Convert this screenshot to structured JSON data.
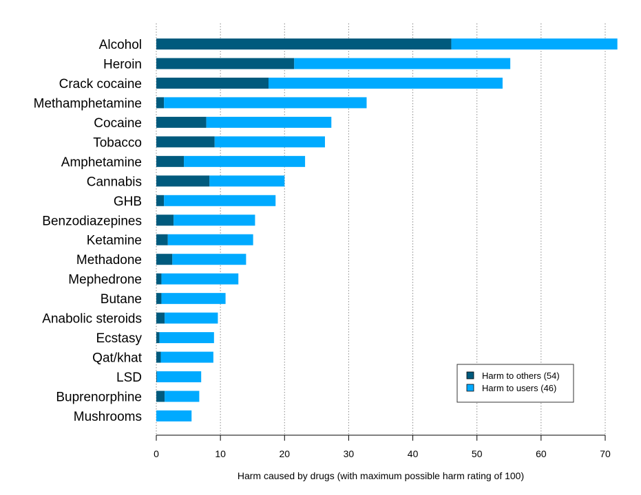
{
  "chart_data": {
    "type": "bar",
    "orientation": "horizontal",
    "stacked": true,
    "xlabel": "Harm caused by drugs (with maximum possible harm rating of 100)",
    "xlim": [
      0,
      70
    ],
    "xticks": [
      "0",
      "10",
      "20",
      "30",
      "40",
      "50",
      "60",
      "70"
    ],
    "grid": "vertical dotted",
    "legend_position": "bottom-right",
    "categories": [
      "Alcohol",
      "Heroin",
      "Crack cocaine",
      "Methamphetamine",
      "Cocaine",
      "Tobacco",
      "Amphetamine",
      "Cannabis",
      "GHB",
      "Benzodiazepines",
      "Ketamine",
      "Methadone",
      "Mephedrone",
      "Butane",
      "Anabolic steroids",
      "Ecstasy",
      "Qat/khat",
      "LSD",
      "Buprenorphine",
      "Mushrooms"
    ],
    "series": [
      {
        "name": "Harm to others (54)",
        "color": "#005a7d",
        "values": [
          46,
          21.5,
          17.5,
          1.2,
          7.8,
          9.1,
          4.3,
          8.3,
          1.2,
          2.7,
          1.8,
          2.5,
          0.8,
          0.8,
          1.3,
          0.5,
          0.7,
          0.1,
          1.3,
          0
        ]
      },
      {
        "name": "Harm to users (46)",
        "color": "#00aaff",
        "values": [
          25.9,
          33.7,
          36.5,
          31.6,
          19.5,
          17.2,
          18.9,
          11.7,
          17.4,
          12.7,
          13.3,
          11.5,
          12.0,
          10.0,
          8.3,
          8.5,
          8.2,
          6.9,
          5.4,
          5.5
        ]
      }
    ]
  }
}
